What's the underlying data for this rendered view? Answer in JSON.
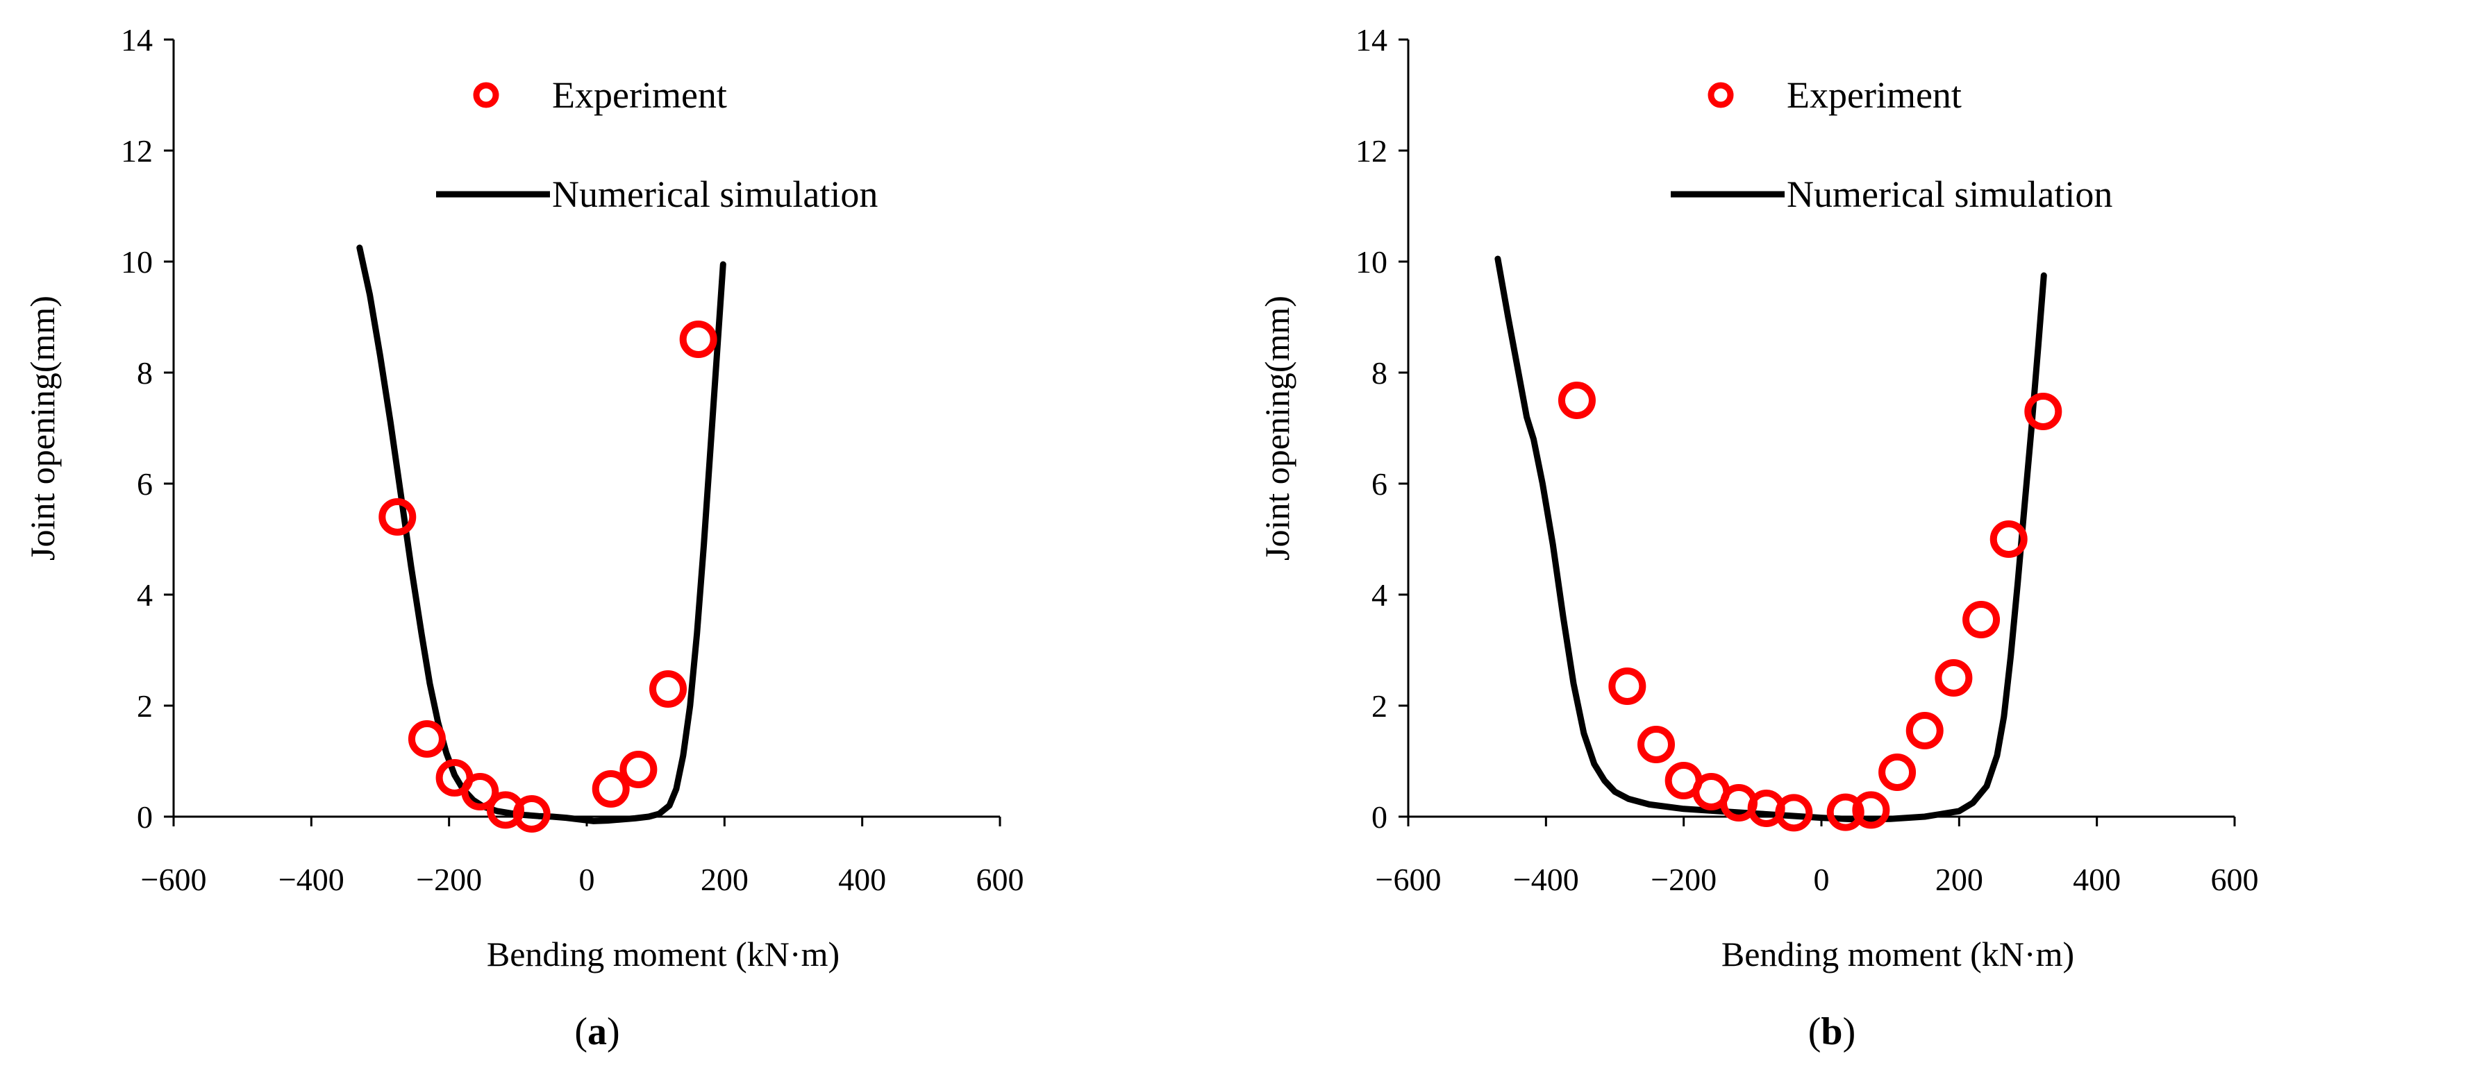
{
  "colors": {
    "marker": "#ff0000",
    "line": "#000000",
    "axis": "#000000",
    "background": "#ffffff"
  },
  "chart_data": [
    {
      "type": "scatter+line",
      "caption_open": "(",
      "caption_label": "a",
      "caption_close": ")",
      "xlabel": "Bending moment (kN·m)",
      "ylabel": "Joint opening(mm)",
      "xlim": [
        -600,
        600
      ],
      "ylim": [
        0,
        14
      ],
      "xticks": [
        -600,
        -400,
        -200,
        0,
        200,
        400,
        600
      ],
      "yticks": [
        0,
        2,
        4,
        6,
        8,
        10,
        12,
        14
      ],
      "xtick_labels": [
        "−600",
        "−400",
        "−200",
        "0",
        "200",
        "400",
        "600"
      ],
      "ytick_labels": [
        "0",
        "2",
        "4",
        "6",
        "8",
        "10",
        "12",
        "14"
      ],
      "grid": false,
      "legend": {
        "position": "top-center",
        "entries": [
          {
            "name": "Experiment",
            "marker": "hollow-circle"
          },
          {
            "name": "Numerical simulation",
            "marker": "line"
          }
        ]
      },
      "series": [
        {
          "name": "Experiment",
          "kind": "scatter",
          "x": [
            -275,
            -232,
            -192,
            -155,
            -118,
            -80,
            35,
            75,
            118,
            162
          ],
          "y": [
            5.4,
            1.4,
            0.7,
            0.45,
            0.12,
            0.05,
            0.5,
            0.85,
            2.3,
            8.6
          ]
        },
        {
          "name": "Numerical simulation",
          "kind": "line",
          "x": [
            -330,
            -315,
            -300,
            -285,
            -270,
            -255,
            -240,
            -228,
            -216,
            -204,
            -192,
            -180,
            -165,
            -150,
            -130,
            -110,
            -90,
            -70,
            -50,
            -30,
            -10,
            10,
            30,
            50,
            70,
            90,
            105,
            120,
            130,
            140,
            150,
            160,
            170,
            180,
            190,
            198
          ],
          "y": [
            10.25,
            9.4,
            8.3,
            7.1,
            5.8,
            4.5,
            3.3,
            2.4,
            1.7,
            1.15,
            0.75,
            0.5,
            0.3,
            0.18,
            0.1,
            0.06,
            0.03,
            0.01,
            0.0,
            -0.02,
            -0.05,
            -0.08,
            -0.07,
            -0.05,
            -0.03,
            0.0,
            0.05,
            0.2,
            0.5,
            1.1,
            2.0,
            3.3,
            4.9,
            6.7,
            8.5,
            9.95
          ]
        }
      ]
    },
    {
      "type": "scatter+line",
      "caption_open": "(",
      "caption_label": "b",
      "caption_close": ")",
      "xlabel": "Bending moment (kN·m)",
      "ylabel": "Joint opening(mm)",
      "xlim": [
        -600,
        600
      ],
      "ylim": [
        0,
        14
      ],
      "xticks": [
        -600,
        -400,
        -200,
        0,
        200,
        400,
        600
      ],
      "yticks": [
        0,
        2,
        4,
        6,
        8,
        10,
        12,
        14
      ],
      "xtick_labels": [
        "−600",
        "−400",
        "−200",
        "0",
        "200",
        "400",
        "600"
      ],
      "ytick_labels": [
        "0",
        "2",
        "4",
        "6",
        "8",
        "10",
        "12",
        "14"
      ],
      "grid": false,
      "legend": {
        "position": "top-center",
        "entries": [
          {
            "name": "Experiment",
            "marker": "hollow-circle"
          },
          {
            "name": "Numerical simulation",
            "marker": "line"
          }
        ]
      },
      "series": [
        {
          "name": "Experiment",
          "kind": "scatter",
          "x": [
            -355,
            -282,
            -240,
            -200,
            -160,
            -120,
            -80,
            -40,
            35,
            72,
            110,
            150,
            192,
            232,
            272,
            322
          ],
          "y": [
            7.5,
            2.35,
            1.3,
            0.65,
            0.45,
            0.25,
            0.15,
            0.07,
            0.08,
            0.12,
            0.8,
            1.55,
            2.5,
            3.55,
            5.0,
            7.3
          ]
        },
        {
          "name": "Numerical simulation",
          "kind": "line",
          "x": [
            -470,
            -455,
            -440,
            -428,
            -418,
            -405,
            -390,
            -375,
            -360,
            -345,
            -330,
            -315,
            -300,
            -280,
            -250,
            -200,
            -150,
            -100,
            -50,
            0,
            50,
            100,
            150,
            200,
            220,
            240,
            255,
            265,
            275,
            285,
            295,
            305,
            315,
            323
          ],
          "y": [
            10.05,
            9.0,
            8.0,
            7.2,
            6.8,
            6.0,
            4.9,
            3.6,
            2.4,
            1.5,
            0.95,
            0.65,
            0.45,
            0.32,
            0.22,
            0.14,
            0.1,
            0.06,
            0.02,
            -0.02,
            -0.05,
            -0.04,
            0.0,
            0.1,
            0.25,
            0.55,
            1.1,
            1.8,
            2.9,
            4.2,
            5.6,
            7.0,
            8.5,
            9.75
          ]
        }
      ]
    }
  ]
}
